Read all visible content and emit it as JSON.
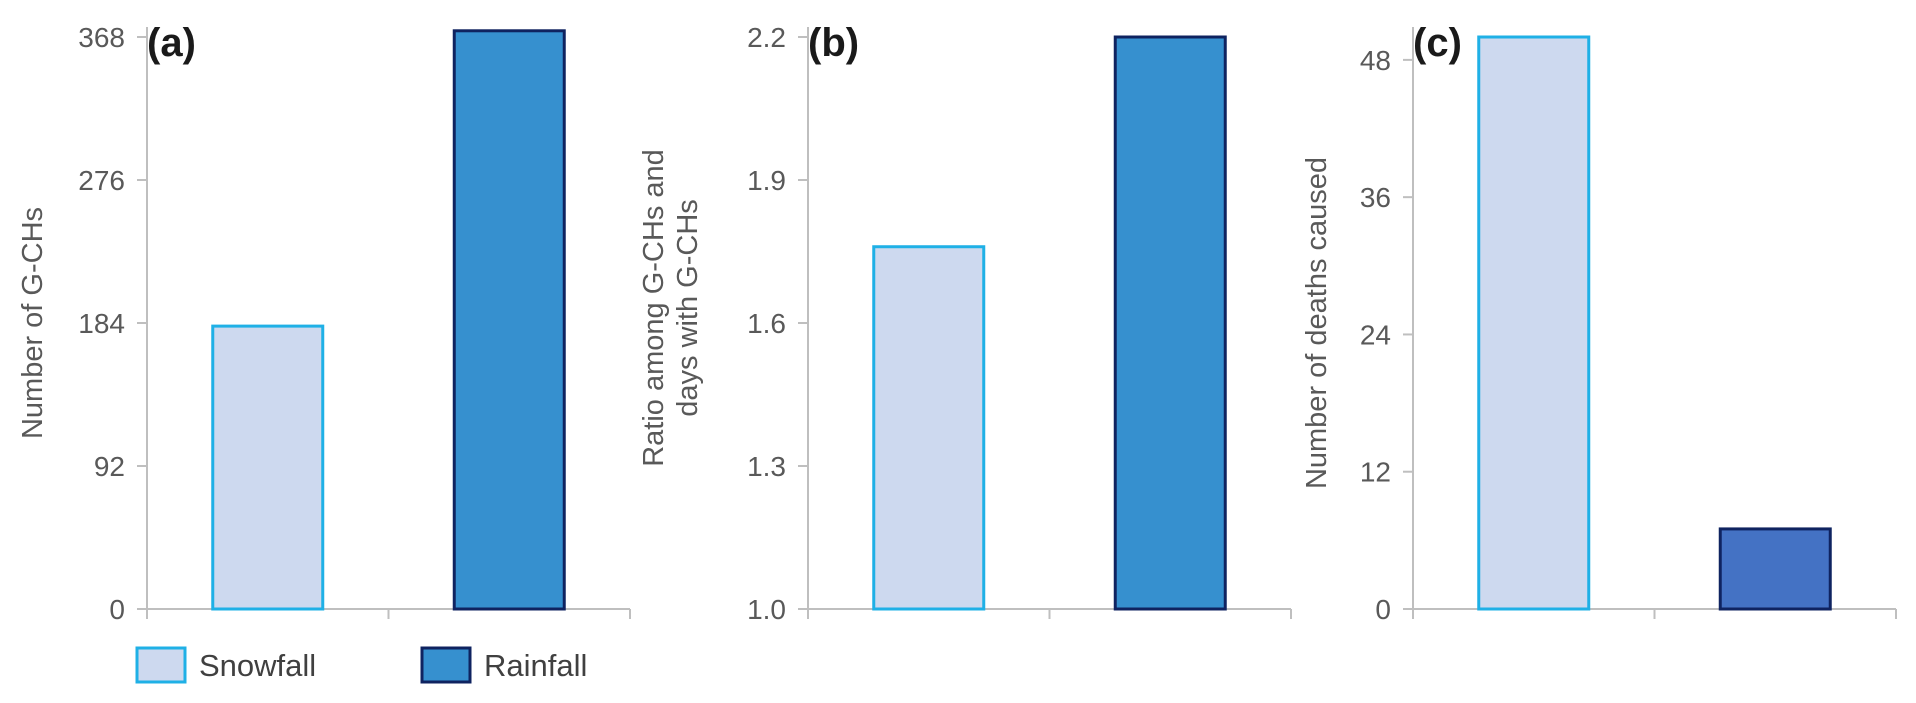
{
  "chart_data": [
    {
      "type": "bar",
      "panel_label": "(a)",
      "categories": [
        "Snowfall",
        "Rainfall"
      ],
      "values": [
        182,
        372
      ],
      "ylabel": "Number of G-CHs",
      "ylim": [
        0,
        368
      ],
      "yticks": [
        0,
        92,
        184,
        276,
        368
      ],
      "ytick_labels": [
        "0",
        "92",
        "184",
        "276",
        "368"
      ],
      "colors": {
        "fill": [
          "#cdd9ef",
          "#3690cf"
        ],
        "stroke": [
          "#1fb0e6",
          "#0f2360"
        ]
      }
    },
    {
      "type": "bar",
      "panel_label": "(b)",
      "categories": [
        "Snowfall",
        "Rainfall"
      ],
      "values": [
        1.76,
        2.2
      ],
      "ylabel_lines": [
        "Ratio among G-CHs and",
        "days with G-CHs"
      ],
      "ylim": [
        1.0,
        2.2
      ],
      "yticks": [
        1.0,
        1.3,
        1.6,
        1.9,
        2.2
      ],
      "ytick_labels": [
        "1.0",
        "1.3",
        "1.6",
        "1.9",
        "2.2"
      ],
      "colors": {
        "fill": [
          "#cdd9ef",
          "#3690cf"
        ],
        "stroke": [
          "#1fb0e6",
          "#0f2360"
        ]
      }
    },
    {
      "type": "bar",
      "panel_label": "(c)",
      "categories": [
        "Snowfall",
        "Rainfall"
      ],
      "values": [
        50,
        7
      ],
      "ylabel": "Number of deaths caused",
      "ylim": [
        0,
        50
      ],
      "yticks": [
        0,
        12,
        24,
        36,
        48
      ],
      "ytick_labels": [
        "0",
        "12",
        "24",
        "36",
        "48"
      ],
      "colors": {
        "fill": [
          "#cdd9ef",
          "#4472c4"
        ],
        "stroke": [
          "#1fb0e6",
          "#0f2360"
        ]
      }
    }
  ],
  "legend": {
    "placement": "bottom-left",
    "items": [
      {
        "label": "Snowfall",
        "fill": "#cdd9ef",
        "stroke": "#1fb0e6"
      },
      {
        "label": "Rainfall",
        "fill": "#3690cf",
        "stroke": "#0f2360"
      }
    ]
  }
}
